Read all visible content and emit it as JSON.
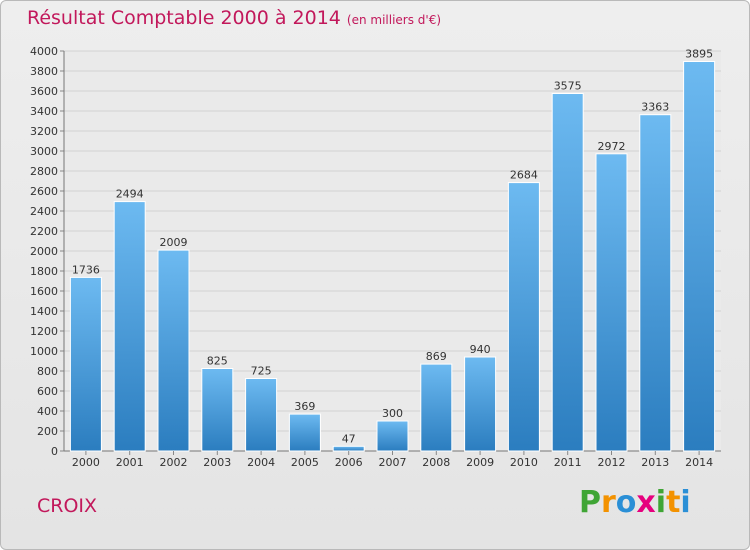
{
  "chart_data": {
    "type": "bar",
    "title": "Résultat Comptable 2000 à 2014",
    "subtitle": "(en milliers d'€)",
    "categories": [
      "2000",
      "2001",
      "2002",
      "2003",
      "2004",
      "2005",
      "2006",
      "2007",
      "2008",
      "2009",
      "2010",
      "2011",
      "2012",
      "2013",
      "2014"
    ],
    "values": [
      1736,
      2494,
      2009,
      825,
      725,
      369,
      47,
      300,
      869,
      940,
      2684,
      3575,
      2972,
      3363,
      3895
    ],
    "ylim": [
      0,
      4000
    ],
    "ytick_step": 200,
    "grid": true,
    "xlabel": "",
    "ylabel": ""
  },
  "commune": "CROIX",
  "brand": {
    "letters": [
      "P",
      "r",
      "o",
      "x",
      "i",
      "t",
      "i"
    ],
    "colors": [
      "#3fa535",
      "#f39200",
      "#2a8fd6",
      "#e6007e",
      "#3fa535",
      "#f39200",
      "#2a8fd6"
    ]
  },
  "colors": {
    "accent": "#c2185b",
    "bar_light": "#6db9f0",
    "bar_dark": "#2a7fc0",
    "grid": "#d2d2d2"
  }
}
